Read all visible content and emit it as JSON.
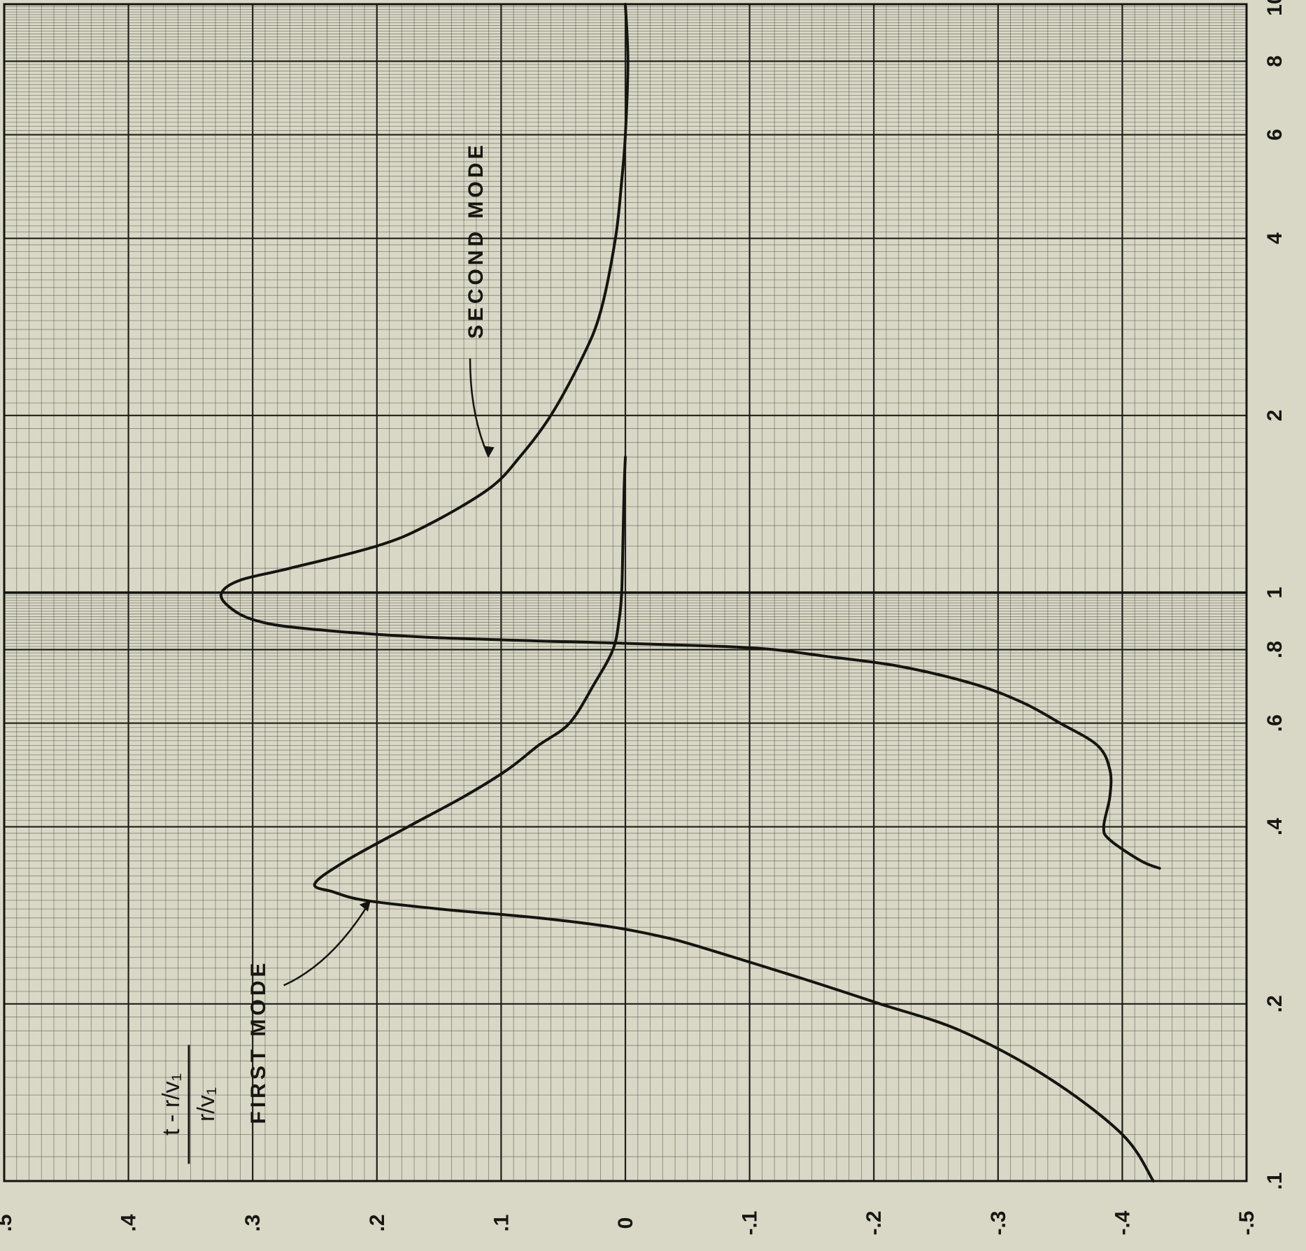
{
  "chart_data": {
    "type": "line",
    "orientation": "rotated 90° clockwise",
    "title": "",
    "x_scale": "log",
    "xlim": [
      0.1,
      10
    ],
    "x_ticks": [
      ".1",
      ".2",
      ".4",
      ".6",
      ".8",
      "1",
      "2",
      "4",
      "6",
      "8",
      "10"
    ],
    "ylim": [
      -0.5,
      0.5
    ],
    "y_ticks": [
      ".5",
      ".4",
      ".3",
      ".2",
      ".1",
      "0",
      "-.1",
      "-.2",
      "-.3",
      "-.4",
      "-.5"
    ],
    "ylabel": {
      "numerator": "t - r/v₁",
      "denominator": "r/v₁"
    },
    "xlabel": "",
    "grid": true,
    "series": [
      {
        "name": "FIRST MODE",
        "x": [
          0.1,
          0.12,
          0.15,
          0.18,
          0.2,
          0.22,
          0.25,
          0.26,
          0.27,
          0.28,
          0.29,
          0.3,
          0.31,
          0.32,
          0.35,
          0.4,
          0.45,
          0.5,
          0.55,
          0.6,
          0.7,
          0.8,
          0.9,
          1,
          1.2,
          1.5,
          1.7
        ],
        "y": [
          -0.425,
          -0.4,
          -0.34,
          -0.27,
          -0.205,
          -0.145,
          -0.06,
          -0.03,
          0.01,
          0.07,
          0.15,
          0.21,
          0.235,
          0.25,
          0.225,
          0.175,
          0.13,
          0.095,
          0.07,
          0.045,
          0.025,
          0.01,
          0.005,
          0.003,
          0.002,
          0.001,
          0.0
        ]
      },
      {
        "name": "SECOND MODE",
        "x": [
          0.34,
          0.35,
          0.38,
          0.4,
          0.45,
          0.5,
          0.55,
          0.6,
          0.65,
          0.7,
          0.75,
          0.78,
          0.8,
          0.81,
          0.82,
          0.84,
          0.87,
          0.9,
          0.95,
          1.0,
          1.05,
          1.1,
          1.2,
          1.3,
          1.5,
          1.7,
          2,
          2.5,
          3,
          4,
          5,
          6,
          8,
          10
        ],
        "y": [
          -0.43,
          -0.415,
          -0.39,
          -0.385,
          -0.39,
          -0.39,
          -0.38,
          -0.35,
          -0.32,
          -0.28,
          -0.22,
          -0.16,
          -0.12,
          -0.08,
          0.0,
          0.16,
          0.26,
          0.3,
          0.32,
          0.325,
          0.31,
          0.27,
          0.2,
          0.16,
          0.11,
          0.085,
          0.06,
          0.035,
          0.02,
          0.008,
          0.003,
          0.0,
          -0.002,
          0.0
        ]
      }
    ],
    "annotations": [
      "FIRST MODE",
      "SECOND MODE"
    ]
  }
}
